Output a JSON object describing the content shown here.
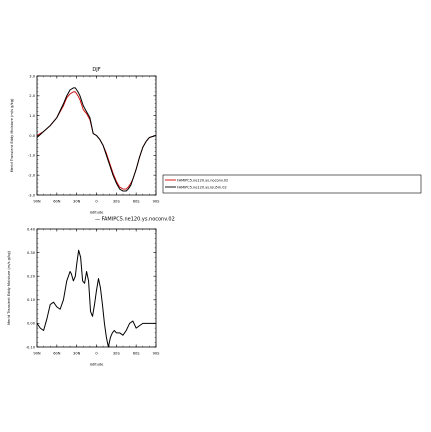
{
  "chart_data": [
    {
      "type": "line",
      "title": "DJF",
      "xlabel": "latitude",
      "ylabel": "Merid Transient Eddy Moisture (m/s g/kg)",
      "xlim": [
        90,
        -90
      ],
      "ylim": [
        -3.0,
        3.0
      ],
      "xticks": [
        "90N",
        "60N",
        "30N",
        "0",
        "30S",
        "60S",
        "90S"
      ],
      "yticks": [
        "-3.0",
        "-2.0",
        "-1.0",
        "0.0",
        "1.0",
        "2.0",
        "3.0"
      ],
      "grid": false,
      "legend_position": "right",
      "series": [
        {
          "name": "FAMIPC5.ne120.ys.noconv.02",
          "color": "#cc0000",
          "x": [
            90,
            80,
            70,
            60,
            50,
            45,
            40,
            35,
            32,
            30,
            28,
            25,
            22,
            20,
            15,
            10,
            5,
            0,
            -5,
            -10,
            -15,
            -20,
            -25,
            -30,
            -35,
            -40,
            -45,
            -48,
            -50,
            -52,
            -55,
            -60,
            -65,
            -70,
            -75,
            -80,
            -85,
            -90
          ],
          "y": [
            0.0,
            0.2,
            0.5,
            0.9,
            1.5,
            1.9,
            2.1,
            2.2,
            2.2,
            2.1,
            2.0,
            1.8,
            1.5,
            1.3,
            1.1,
            0.8,
            0.1,
            0.0,
            -0.2,
            -0.5,
            -0.9,
            -1.4,
            -1.9,
            -2.3,
            -2.6,
            -2.7,
            -2.7,
            -2.6,
            -2.5,
            -2.4,
            -2.2,
            -1.7,
            -1.1,
            -0.6,
            -0.3,
            -0.1,
            -0.05,
            0.0
          ]
        },
        {
          "name": "FAMIPC5.ne120.ys.lou5m.02",
          "color": "#000000",
          "x": [
            90,
            80,
            70,
            60,
            50,
            45,
            40,
            35,
            32,
            30,
            28,
            25,
            22,
            20,
            15,
            10,
            5,
            0,
            -5,
            -10,
            -15,
            -20,
            -25,
            -30,
            -35,
            -40,
            -45,
            -48,
            -50,
            -52,
            -55,
            -60,
            -65,
            -70,
            -75,
            -80,
            -85,
            -90
          ],
          "y": [
            -0.1,
            0.2,
            0.5,
            0.9,
            1.6,
            2.0,
            2.3,
            2.4,
            2.4,
            2.3,
            2.2,
            2.0,
            1.7,
            1.5,
            1.2,
            0.9,
            0.1,
            0.0,
            -0.2,
            -0.5,
            -1.0,
            -1.5,
            -2.0,
            -2.4,
            -2.7,
            -2.8,
            -2.8,
            -2.7,
            -2.6,
            -2.5,
            -2.2,
            -1.7,
            -1.1,
            -0.6,
            -0.3,
            -0.1,
            -0.05,
            0.0
          ]
        }
      ]
    },
    {
      "type": "line",
      "title": "— FAMIPC5.ne120.ys.noconv.02",
      "xlabel": "latitude",
      "ylabel": "Merid Transient Eddy Moisture (m/s g/kg)",
      "xlim": [
        90,
        -90
      ],
      "ylim": [
        -0.1,
        0.4
      ],
      "xticks": [
        "90N",
        "60N",
        "30N",
        "0",
        "30S",
        "60S",
        "90S"
      ],
      "yticks": [
        "-0.10",
        "0.00",
        "0.10",
        "0.20",
        "0.30",
        "0.40"
      ],
      "grid": false,
      "series": [
        {
          "name": "",
          "color": "#000000",
          "x": [
            90,
            85,
            80,
            75,
            70,
            65,
            60,
            55,
            50,
            45,
            40,
            38,
            35,
            32,
            30,
            27,
            24,
            21,
            18,
            15,
            12,
            9,
            6,
            3,
            0,
            -3,
            -6,
            -9,
            -12,
            -15,
            -18,
            -21,
            -24,
            -27,
            -30,
            -35,
            -40,
            -45,
            -50,
            -55,
            -60,
            -65,
            -70,
            -75,
            -80,
            -85,
            -90
          ],
          "y": [
            0.0,
            -0.02,
            -0.03,
            0.02,
            0.08,
            0.09,
            0.07,
            0.06,
            0.1,
            0.18,
            0.22,
            0.21,
            0.18,
            0.2,
            0.25,
            0.31,
            0.28,
            0.18,
            0.17,
            0.22,
            0.18,
            0.05,
            0.03,
            0.08,
            0.14,
            0.19,
            0.15,
            0.08,
            0.0,
            -0.06,
            -0.1,
            -0.06,
            -0.04,
            -0.03,
            -0.04,
            -0.04,
            -0.05,
            -0.03,
            0.0,
            0.01,
            -0.02,
            -0.01,
            0.0,
            0.0,
            0.0,
            0.0,
            0.0
          ]
        }
      ]
    }
  ]
}
